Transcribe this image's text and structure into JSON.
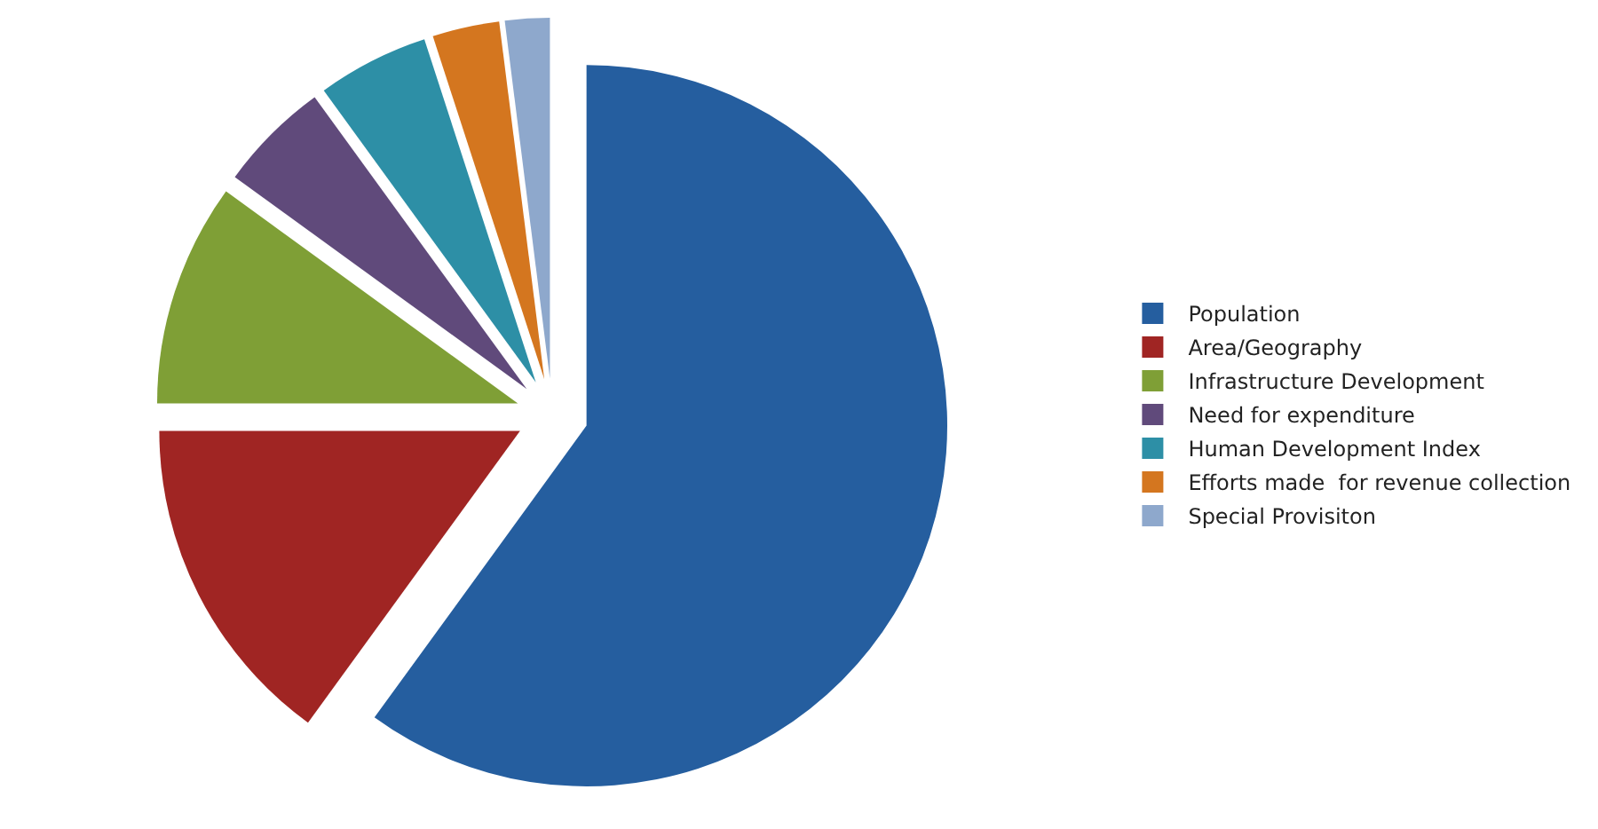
{
  "chart_data": {
    "type": "pie",
    "categories": [
      "Population",
      "Area/Geography",
      "Infrastructure Development",
      "Need for expenditure",
      "Human Development Index",
      "Efforts made  for revenue collection",
      "Special Provisiton"
    ],
    "values": [
      60,
      15,
      10,
      5,
      5,
      3,
      2
    ],
    "colors": [
      "#255e9f",
      "#a02523",
      "#7f9f36",
      "#604a7b",
      "#2d8fa6",
      "#d4761f",
      "#8ea8cc"
    ],
    "legend": "right"
  }
}
